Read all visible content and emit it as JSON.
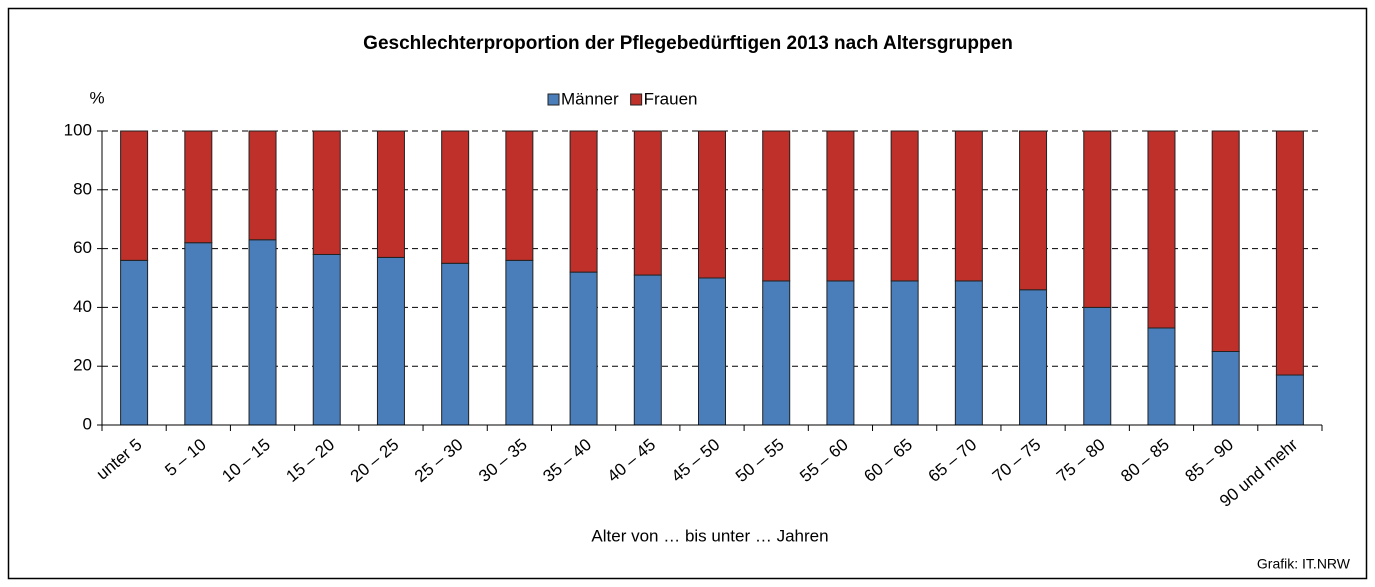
{
  "chart_data": {
    "type": "stacked_bar",
    "title": "Geschlechterproportion der Pflegebedürftigen 2013 nach Altersgruppen",
    "y_label": "%",
    "x_label": "Alter von … bis unter … Jahren",
    "source": "Grafik: IT.NRW",
    "categories": [
      "unter 5",
      "5 – 10",
      "10 – 15",
      "15 – 20",
      "20 – 25",
      "25 – 30",
      "30 – 35",
      "35 – 40",
      "40 – 45",
      "45 – 50",
      "50 – 55",
      "55 – 60",
      "60 – 65",
      "65 – 70",
      "70 – 75",
      "75 – 80",
      "80 – 85",
      "85 – 90",
      "90 und mehr"
    ],
    "series": [
      {
        "name": "Männer",
        "color": "#4a7ebb",
        "values": [
          56,
          62,
          63,
          58,
          57,
          55,
          56,
          52,
          51,
          50,
          49,
          49,
          49,
          49,
          46,
          40,
          33,
          25,
          17
        ]
      },
      {
        "name": "Frauen",
        "color": "#c0302a",
        "values": [
          44,
          38,
          37,
          42,
          43,
          45,
          44,
          48,
          49,
          50,
          51,
          51,
          51,
          51,
          54,
          60,
          67,
          75,
          83
        ]
      }
    ],
    "ylim": [
      0,
      100
    ],
    "yticks": [
      0,
      20,
      40,
      60,
      80,
      100
    ],
    "grid": true
  }
}
